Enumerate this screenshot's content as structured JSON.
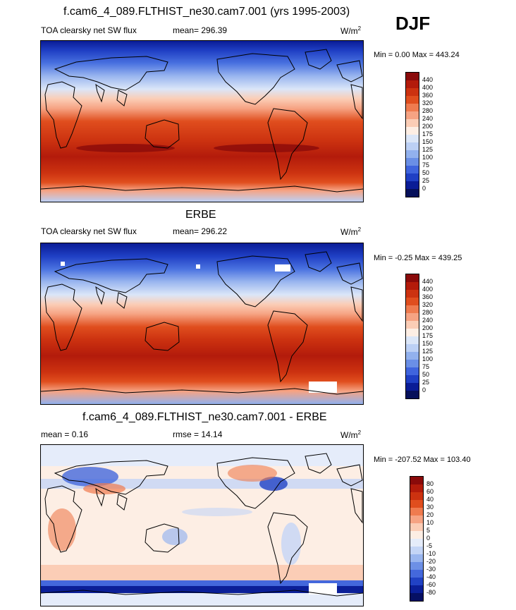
{
  "header": {
    "title": "f.cam6_4_089.FLTHIST_ne30.cam7.001 (yrs 1995-2003)",
    "season": "DJF"
  },
  "panels": [
    {
      "id": "model",
      "title": "",
      "left": "TOA clearsky net SW flux",
      "center": "mean=  296.39",
      "units": "W/m",
      "units_sup": "2",
      "minmax": "Min =   0.00 Max = 443.24"
    },
    {
      "id": "obs",
      "title": "ERBE",
      "left": "TOA clearsky net SW flux",
      "center": "mean=  296.22",
      "units": "W/m",
      "units_sup": "2",
      "minmax": "Min =  -0.25 Max = 439.25"
    },
    {
      "id": "diff",
      "title": "f.cam6_4_089.FLTHIST_ne30.cam7.001 - ERBE",
      "left": "mean =   0.16",
      "center": "rmse =  14.14",
      "units": "W/m",
      "units_sup": "2",
      "minmax": "Min = -207.52 Max = 103.40"
    }
  ],
  "colorbars": {
    "abs": {
      "labels": [
        "440",
        "400",
        "360",
        "320",
        "280",
        "240",
        "200",
        "175",
        "150",
        "125",
        "100",
        "75",
        "50",
        "25",
        "0"
      ],
      "colors": [
        "#8a0a0a",
        "#b31b0b",
        "#cc3210",
        "#e04e1e",
        "#ef7b4f",
        "#f6a383",
        "#fbcdb6",
        "#fdeee4",
        "#dbe6f8",
        "#bcd0f5",
        "#92b1ee",
        "#6a8fe6",
        "#3f64dd",
        "#1f3fc4",
        "#0a1c96",
        "#06105a"
      ]
    },
    "diff": {
      "labels": [
        "80",
        "60",
        "40",
        "30",
        "20",
        "10",
        "5",
        "0",
        "-5",
        "-10",
        "-20",
        "-30",
        "-40",
        "-60",
        "-80"
      ],
      "colors": [
        "#8a0a0a",
        "#b31b0b",
        "#cc3210",
        "#e04e1e",
        "#ef7b4f",
        "#f6a383",
        "#fbcdb6",
        "#fdeee4",
        "#e5ecfa",
        "#c4d5f6",
        "#9ab6ef",
        "#6d90e6",
        "#4468dc",
        "#2142c4",
        "#0b1f98",
        "#061063"
      ]
    }
  }
}
